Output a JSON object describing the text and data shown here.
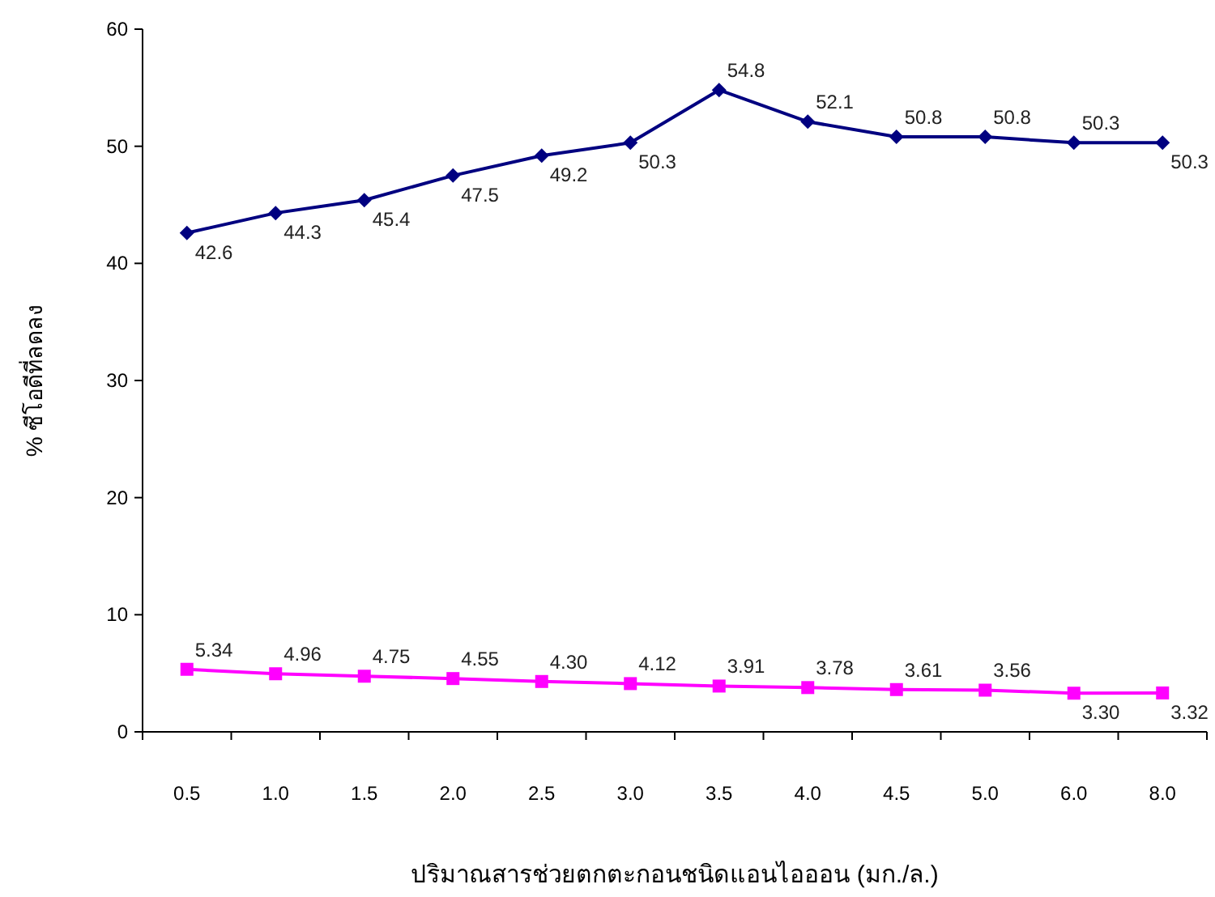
{
  "chart_data": {
    "type": "line",
    "xlabel": "ปริมาณสารช่วยตกตะกอนชนิดแอนไอออน (มก./ล.)",
    "ylabel": "% ซีโอดีที่ลดลง",
    "categories": [
      "0.5",
      "1.0",
      "1.5",
      "2.0",
      "2.5",
      "3.0",
      "3.5",
      "4.0",
      "4.5",
      "5.0",
      "6.0",
      "8.0"
    ],
    "series": [
      {
        "color": "#000080",
        "marker": "diamond",
        "values": [
          42.6,
          44.3,
          45.4,
          47.5,
          49.2,
          50.3,
          54.8,
          52.1,
          50.8,
          50.8,
          50.3,
          50.3
        ]
      },
      {
        "color": "#ff00ff",
        "marker": "square",
        "values": [
          5.34,
          4.96,
          4.75,
          4.55,
          4.3,
          4.12,
          3.91,
          3.78,
          3.61,
          3.56,
          3.3,
          3.32
        ],
        "value_labels": [
          "5.34",
          "4.96",
          "4.75",
          "4.55",
          "4.30",
          "4.12",
          "3.91",
          "3.78",
          "3.61",
          "3.56",
          "3.30",
          "3.32"
        ]
      }
    ],
    "data_labels": true,
    "ylim": [
      0,
      60
    ],
    "yticks": [
      0,
      10,
      20,
      30,
      40,
      50,
      60
    ],
    "grid": false,
    "line_style": "solid"
  }
}
